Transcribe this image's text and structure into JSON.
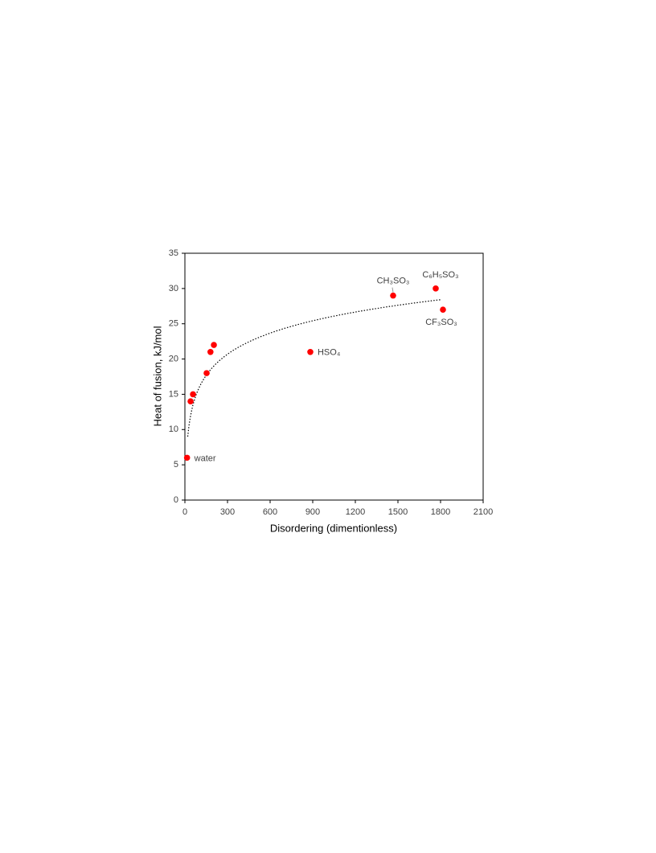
{
  "chart_data": {
    "type": "scatter",
    "x_label": "Disordering (dimentionless)",
    "y_label": "Heat of fusion, kJ/mol",
    "series": [
      {
        "color": "#ff0000",
        "x": [
          15,
          40,
          57,
          153,
          180,
          204,
          883,
          1466,
          1766,
          1817
        ],
        "values": [
          6,
          14,
          15,
          18,
          21,
          22,
          21,
          29,
          30,
          27
        ],
        "point_labels": [
          "water",
          null,
          null,
          null,
          null,
          null,
          "HSO₄",
          "CH₃SO₃",
          "C₆H₅SO₃",
          "CF₃SO₃"
        ]
      }
    ],
    "trendline": {
      "type": "log",
      "a": 4.315,
      "b": -3.93,
      "xrange": [
        20,
        1800
      ],
      "color": "#000000"
    },
    "xlim": [
      0,
      2100
    ],
    "xticks": [
      0,
      300,
      600,
      900,
      1200,
      1500,
      1800,
      2100
    ],
    "ylim": [
      0,
      35
    ],
    "yticks": [
      0,
      5,
      10,
      15,
      20,
      25,
      30,
      35
    ],
    "grid": false
  }
}
